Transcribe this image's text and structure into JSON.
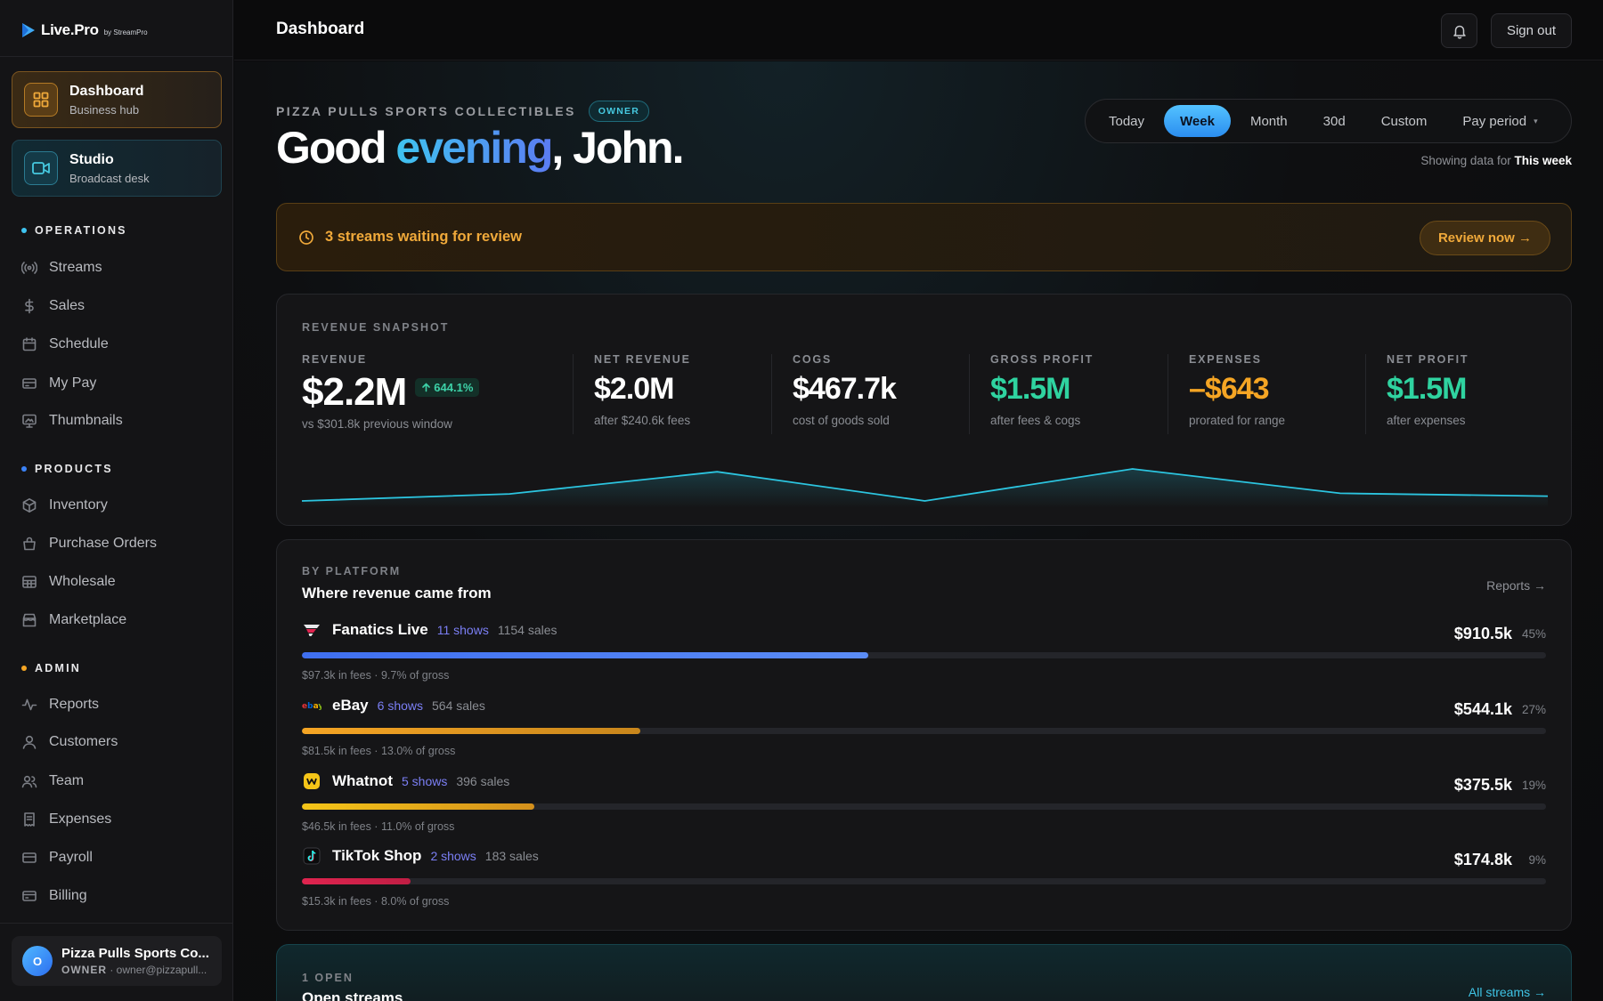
{
  "app": {
    "logo_name": "Live.Pro",
    "logo_by": "by StreamPro"
  },
  "hubs": [
    {
      "title": "Dashboard",
      "subtitle": "Business hub",
      "icon": "grid-icon",
      "active": true
    },
    {
      "title": "Studio",
      "subtitle": "Broadcast desk",
      "icon": "video-camera-icon",
      "active": false
    }
  ],
  "sections": {
    "operations": {
      "label": "OPERATIONS",
      "color": "#3fc4f0",
      "items": [
        {
          "label": "Streams",
          "icon": "broadcast-icon"
        },
        {
          "label": "Sales",
          "icon": "dollar-icon"
        },
        {
          "label": "Schedule",
          "icon": "calendar-icon"
        },
        {
          "label": "My Pay",
          "icon": "card-icon"
        },
        {
          "label": "Thumbnails",
          "icon": "monitor-image-icon"
        }
      ]
    },
    "products": {
      "label": "PRODUCTS",
      "color": "#3b82f6",
      "items": [
        {
          "label": "Inventory",
          "icon": "box-icon"
        },
        {
          "label": "Purchase Orders",
          "icon": "bag-icon"
        },
        {
          "label": "Wholesale",
          "icon": "grid-table-icon"
        },
        {
          "label": "Marketplace",
          "icon": "store-icon"
        }
      ]
    },
    "admin": {
      "label": "ADMIN",
      "color": "#f5a524",
      "items": [
        {
          "label": "Reports",
          "icon": "pulse-icon"
        },
        {
          "label": "Customers",
          "icon": "user-icon"
        },
        {
          "label": "Team",
          "icon": "users-icon"
        },
        {
          "label": "Expenses",
          "icon": "receipt-icon"
        },
        {
          "label": "Payroll",
          "icon": "wallet-icon"
        },
        {
          "label": "Billing",
          "icon": "credit-card-icon"
        }
      ]
    }
  },
  "user": {
    "initial": "O",
    "name": "Pizza Pulls Sports Co...",
    "role": "OWNER",
    "email": "· owner@pizzapull..."
  },
  "header": {
    "title": "Dashboard",
    "sign_out": "Sign out"
  },
  "hero": {
    "org_name": "PIZZA PULLS SPORTS COLLECTIBLES",
    "role_badge": "OWNER",
    "greeting_pre": "Good ",
    "greeting_accent": "evening",
    "greeting_post": ", John."
  },
  "range": {
    "options": [
      "Today",
      "Week",
      "Month",
      "30d",
      "Custom",
      "Pay period"
    ],
    "selected": "Week",
    "note_prefix": "Showing data for ",
    "note_value": "This week"
  },
  "alert": {
    "text": "3 streams waiting for review",
    "button": "Review now →"
  },
  "revenue": {
    "eyebrow": "REVENUE SNAPSHOT",
    "metrics": [
      {
        "label": "REVENUE",
        "value": "$2.2M",
        "sub": "vs $301.8k previous window",
        "delta": "644.1%",
        "color": "#ffffff"
      },
      {
        "label": "NET REVENUE",
        "value": "$2.0M",
        "sub": "after $240.6k fees",
        "color": "#ffffff"
      },
      {
        "label": "COGS",
        "value": "$467.7k",
        "sub": "cost of goods sold",
        "color": "#ffffff"
      },
      {
        "label": "GROSS PROFIT",
        "value": "$1.5M",
        "sub": "after fees & cogs",
        "color": "#2fd3a0"
      },
      {
        "label": "EXPENSES",
        "value": "–$643",
        "sub": "prorated for range",
        "color": "#f5a524"
      },
      {
        "label": "NET PROFIT",
        "value": "$1.5M",
        "sub": "after expenses",
        "color": "#2fd3a0"
      }
    ]
  },
  "chart_data": {
    "type": "line",
    "x": [
      0,
      1,
      2,
      3,
      4,
      5,
      6
    ],
    "series": [
      {
        "values": [
          0.0,
          0.22,
          0.91,
          0.0,
          1.0,
          0.24,
          0.15
        ]
      }
    ],
    "color": "#2cc5e0",
    "grid": false
  },
  "platforms": {
    "eyebrow": "BY PLATFORM",
    "title": "Where revenue came from",
    "reports_link": "Reports →",
    "rows": [
      {
        "name": "Fanatics Live",
        "shows": "11 shows",
        "sales": "1154 sales",
        "amount": "$910.5k",
        "pct": "45%",
        "fees": "$97.3k in fees · 9.7% of gross",
        "share": 0.455,
        "color_a": "#3f6ff0",
        "color_b": "#5b8cf5",
        "icon": "fanatics-logo-icon"
      },
      {
        "name": "eBay",
        "shows": "6 shows",
        "sales": "564 sales",
        "amount": "$544.1k",
        "pct": "27%",
        "fees": "$81.5k in fees · 13.0% of gross",
        "share": 0.272,
        "color_a": "#f5a524",
        "color_b": "#c8861c",
        "icon": "ebay-logo-icon"
      },
      {
        "name": "Whatnot",
        "shows": "5 shows",
        "sales": "396 sales",
        "amount": "$375.5k",
        "pct": "19%",
        "fees": "$46.5k in fees · 11.0% of gross",
        "share": 0.187,
        "color_a": "#f5c518",
        "color_b": "#d4901c",
        "icon": "whatnot-logo-icon"
      },
      {
        "name": "TikTok Shop",
        "shows": "2 shows",
        "sales": "183 sales",
        "amount": "$174.8k",
        "pct": "9%",
        "fees": "$15.3k in fees · 8.0% of gross",
        "share": 0.087,
        "color_a": "#e0244f",
        "color_b": "#c01e44",
        "icon": "tiktok-logo-icon"
      }
    ]
  },
  "open_streams": {
    "count": "1 OPEN",
    "title": "Open streams",
    "link": "All streams →"
  }
}
